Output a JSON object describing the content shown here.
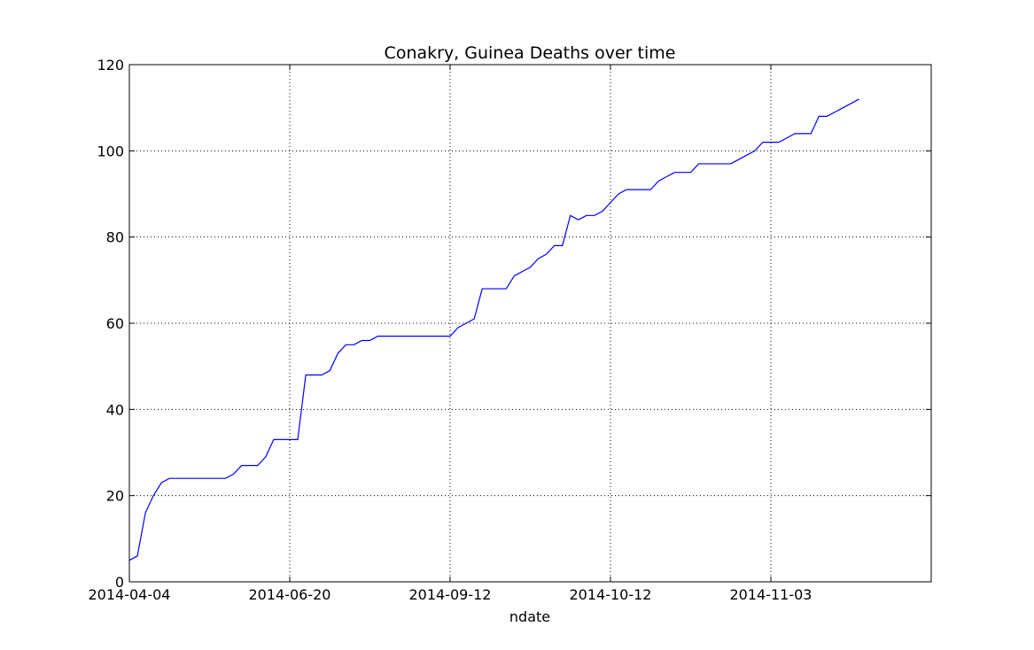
{
  "chart_data": {
    "type": "line",
    "title": "Conakry, Guinea Deaths over time",
    "xlabel": "ndate",
    "ylabel": "",
    "ylim": [
      0,
      120
    ],
    "yticks": [
      0,
      20,
      40,
      60,
      80,
      100,
      120
    ],
    "xlim_index": [
      0,
      100
    ],
    "xticks": [
      {
        "index": 0,
        "label": "2014-04-04"
      },
      {
        "index": 20,
        "label": "2014-06-20"
      },
      {
        "index": 40,
        "label": "2014-09-12"
      },
      {
        "index": 60,
        "label": "2014-10-12"
      },
      {
        "index": 80,
        "label": "2014-11-03"
      }
    ],
    "grid": true,
    "line_color": "#0000ff",
    "series": [
      {
        "values": [
          5,
          6,
          16,
          20,
          23,
          24,
          24,
          24,
          24,
          24,
          24,
          24,
          24,
          25,
          27,
          27,
          27,
          29,
          33,
          33,
          33,
          33,
          48,
          48,
          48,
          49,
          53,
          55,
          55,
          56,
          56,
          57,
          57,
          57,
          57,
          57,
          57,
          57,
          57,
          57,
          57,
          59,
          60,
          61,
          68,
          68,
          68,
          68,
          71,
          72,
          73,
          75,
          76,
          78,
          78,
          85,
          84,
          85,
          85,
          86,
          88,
          90,
          91,
          91,
          91,
          91,
          93,
          94,
          95,
          95,
          95,
          97,
          97,
          97,
          97,
          97,
          98,
          99,
          100,
          102,
          102,
          102,
          103,
          104,
          104,
          104,
          108,
          108,
          109,
          110,
          111,
          112
        ]
      }
    ]
  }
}
